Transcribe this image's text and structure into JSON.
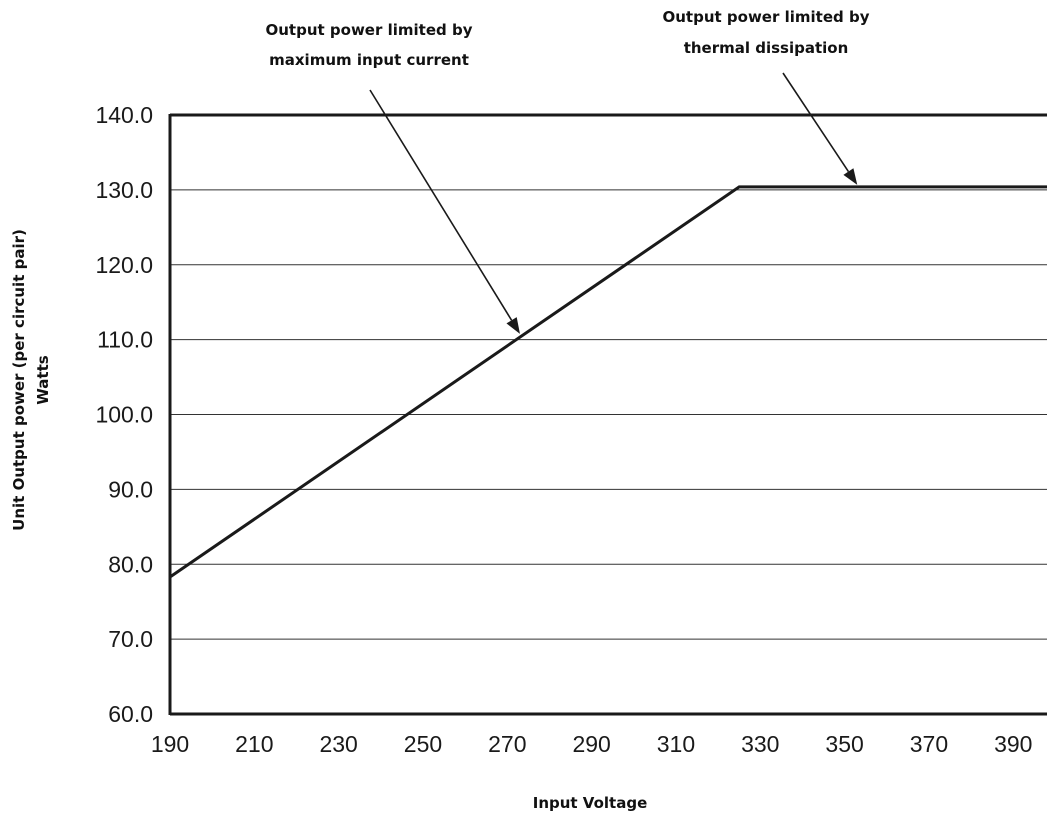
{
  "chart_data": {
    "type": "line",
    "title": "",
    "xlabel": "Input Voltage",
    "ylabel_lines": [
      "Unit Output power (per circuit pair)",
      "Watts"
    ],
    "xlim": [
      190,
      398
    ],
    "ylim": [
      60,
      140
    ],
    "x_ticks": [
      "190",
      "210",
      "230",
      "250",
      "270",
      "290",
      "310",
      "330",
      "350",
      "370",
      "390"
    ],
    "y_ticks": [
      "60.0",
      "70.0",
      "80.0",
      "90.0",
      "100.0",
      "110.0",
      "120.0",
      "130.0",
      "140.0"
    ],
    "grid": true,
    "series": [
      {
        "x": [
          190,
          325,
          398
        ],
        "y": [
          78.3,
          130.4,
          130.4
        ]
      }
    ],
    "annotations": [
      {
        "lines": [
          "Output power limited by",
          "maximum input current"
        ],
        "point_to": [
          273,
          110.5
        ]
      },
      {
        "lines": [
          "Output power limited by",
          "thermal dissipation"
        ],
        "point_to": [
          353,
          130.4
        ]
      }
    ],
    "colors": {
      "line": "#1a1a1a",
      "grid": "#333333",
      "text": "#111111"
    }
  }
}
